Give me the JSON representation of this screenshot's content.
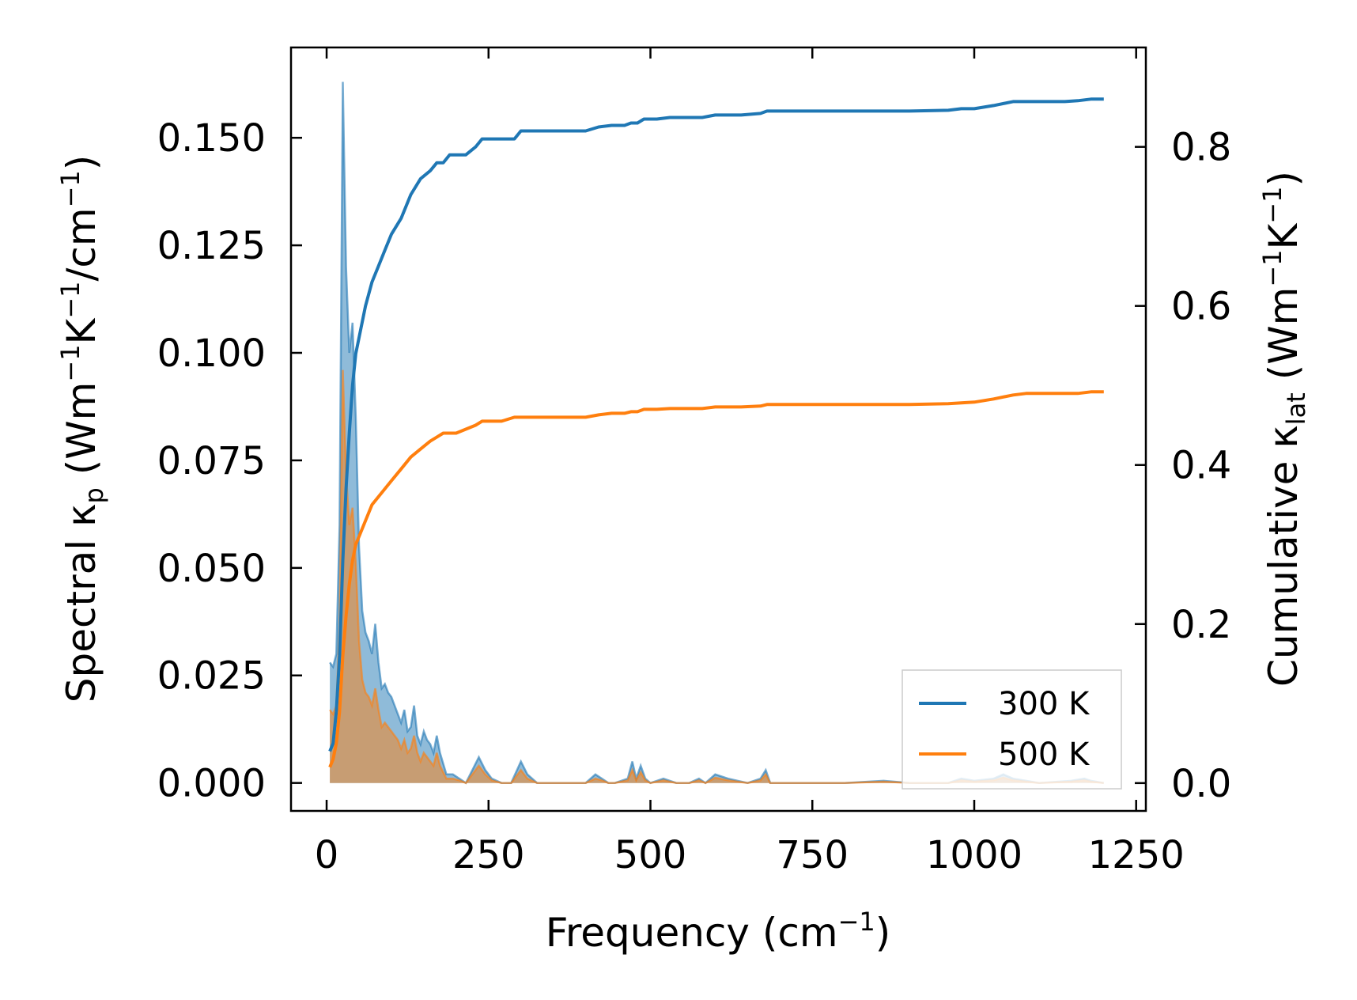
{
  "chart_data": {
    "type": "line",
    "title": "",
    "xlabel": {
      "main": "Frequency (cm",
      "sup": "−1",
      "end": ")"
    },
    "ylabel_left": {
      "main": "Spectral κ",
      "sub": "p",
      "unit_a": " (Wm",
      "sup1": "−1",
      "unit_b": "K",
      "sup2": "−1",
      "unit_c": "/cm",
      "sup3": "−1",
      "end": ")"
    },
    "ylabel_right": {
      "main": "Cumulative κ",
      "sub": "lat",
      "unit_a": " (Wm",
      "sup1": "−1",
      "unit_b": "K",
      "sup2": "−1",
      "end": ")"
    },
    "xlim": [
      -55,
      1265
    ],
    "ylim_left": [
      -0.0065,
      0.171
    ],
    "ylim_right": [
      -0.035,
      0.925
    ],
    "x_ticks": [
      0,
      250,
      500,
      750,
      1000,
      1250
    ],
    "y_ticks_left": [
      0.0,
      0.025,
      0.05,
      0.075,
      0.1,
      0.125,
      0.15
    ],
    "y_tick_labels_left": [
      "0.000",
      "0.025",
      "0.050",
      "0.075",
      "0.100",
      "0.125",
      "0.150"
    ],
    "y_ticks_right": [
      0.0,
      0.2,
      0.4,
      0.6,
      0.8
    ],
    "y_tick_labels_right": [
      "0.0",
      "0.2",
      "0.4",
      "0.6",
      "0.8"
    ],
    "legend": {
      "location": "lower-right",
      "entries": [
        "300 K",
        "500 K"
      ]
    },
    "series": [
      {
        "name": "300 K",
        "color": "#1f77b4",
        "spectral_x": [
          5,
          10,
          15,
          20,
          25,
          30,
          35,
          40,
          45,
          50,
          55,
          60,
          65,
          70,
          75,
          80,
          85,
          90,
          95,
          100,
          105,
          110,
          115,
          120,
          125,
          130,
          135,
          140,
          145,
          150,
          155,
          160,
          165,
          170,
          175,
          185,
          195,
          205,
          215,
          225,
          235,
          245,
          255,
          270,
          285,
          300,
          310,
          325,
          400,
          415,
          425,
          435,
          445,
          465,
          472,
          478,
          485,
          492,
          500,
          520,
          540,
          560,
          575,
          585,
          600,
          620,
          650,
          670,
          678,
          685,
          700,
          800,
          860,
          900,
          960,
          980,
          1000,
          1030,
          1045,
          1060,
          1080,
          1100,
          1150,
          1170,
          1180,
          1200
        ],
        "spectral_y": [
          0.028,
          0.027,
          0.03,
          0.06,
          0.163,
          0.12,
          0.1,
          0.107,
          0.085,
          0.055,
          0.04,
          0.035,
          0.033,
          0.03,
          0.037,
          0.028,
          0.022,
          0.023,
          0.021,
          0.02,
          0.018,
          0.016,
          0.014,
          0.017,
          0.012,
          0.013,
          0.018,
          0.011,
          0.009,
          0.012,
          0.01,
          0.009,
          0.007,
          0.011,
          0.007,
          0.002,
          0.002,
          0.001,
          0.0,
          0.003,
          0.006,
          0.003,
          0.001,
          0.0,
          0.0,
          0.005,
          0.002,
          0.0,
          0.0,
          0.002,
          0.001,
          0.0,
          0.0,
          0.001,
          0.005,
          0.001,
          0.004,
          0.001,
          0.0,
          0.001,
          0.0,
          0.0,
          0.001,
          0.0,
          0.002,
          0.001,
          0.0,
          0.001,
          0.003,
          0.0,
          0.0,
          0.0,
          0.0005,
          0.0,
          0.0,
          0.001,
          0.0005,
          0.001,
          0.002,
          0.001,
          0.0005,
          0.0,
          0.0005,
          0.001,
          0.0005,
          0.0
        ],
        "cumulative_x": [
          5,
          10,
          15,
          20,
          25,
          30,
          35,
          40,
          45,
          50,
          60,
          70,
          80,
          90,
          100,
          115,
          130,
          145,
          160,
          170,
          180,
          190,
          200,
          215,
          230,
          240,
          250,
          270,
          290,
          300,
          320,
          360,
          400,
          420,
          440,
          460,
          470,
          480,
          490,
          510,
          530,
          580,
          600,
          640,
          670,
          680,
          700,
          800,
          900,
          960,
          980,
          1000,
          1030,
          1060,
          1080,
          1100,
          1140,
          1160,
          1180,
          1200
        ],
        "cumulative_y": [
          0.04,
          0.05,
          0.09,
          0.16,
          0.28,
          0.37,
          0.44,
          0.5,
          0.54,
          0.56,
          0.6,
          0.63,
          0.65,
          0.67,
          0.69,
          0.71,
          0.74,
          0.76,
          0.77,
          0.78,
          0.78,
          0.79,
          0.79,
          0.79,
          0.8,
          0.81,
          0.81,
          0.81,
          0.81,
          0.82,
          0.82,
          0.82,
          0.82,
          0.825,
          0.827,
          0.827,
          0.83,
          0.83,
          0.835,
          0.835,
          0.837,
          0.837,
          0.84,
          0.84,
          0.842,
          0.845,
          0.845,
          0.845,
          0.845,
          0.846,
          0.848,
          0.848,
          0.852,
          0.857,
          0.857,
          0.857,
          0.857,
          0.858,
          0.86,
          0.86
        ]
      },
      {
        "name": "500 K",
        "color": "#ff7f0e",
        "spectral_x": [
          5,
          10,
          15,
          20,
          25,
          30,
          35,
          40,
          45,
          50,
          55,
          60,
          65,
          70,
          75,
          80,
          85,
          90,
          95,
          100,
          105,
          110,
          115,
          120,
          125,
          130,
          135,
          140,
          145,
          150,
          155,
          160,
          165,
          170,
          175,
          185,
          195,
          205,
          215,
          225,
          235,
          245,
          255,
          270,
          285,
          300,
          310,
          325,
          400,
          415,
          425,
          435,
          445,
          465,
          472,
          478,
          485,
          492,
          500,
          520,
          540,
          560,
          575,
          585,
          600,
          620,
          650,
          670,
          678,
          685,
          700,
          800,
          860,
          900,
          960,
          980,
          1000,
          1030,
          1045,
          1060,
          1080,
          1100,
          1150,
          1170,
          1180,
          1200
        ],
        "spectral_y": [
          0.017,
          0.016,
          0.018,
          0.036,
          0.096,
          0.072,
          0.06,
          0.064,
          0.051,
          0.033,
          0.024,
          0.021,
          0.02,
          0.018,
          0.022,
          0.017,
          0.013,
          0.014,
          0.013,
          0.012,
          0.011,
          0.01,
          0.008,
          0.01,
          0.007,
          0.008,
          0.011,
          0.007,
          0.005,
          0.007,
          0.006,
          0.005,
          0.004,
          0.007,
          0.004,
          0.001,
          0.001,
          0.0006,
          0.0,
          0.002,
          0.004,
          0.002,
          0.0006,
          0.0,
          0.0,
          0.003,
          0.001,
          0.0,
          0.0,
          0.001,
          0.0006,
          0.0,
          0.0,
          0.0006,
          0.003,
          0.0006,
          0.0025,
          0.0006,
          0.0,
          0.0006,
          0.0,
          0.0,
          0.0006,
          0.0,
          0.0012,
          0.0006,
          0.0,
          0.0006,
          0.002,
          0.0,
          0.0,
          0.0,
          0.0003,
          0.0,
          0.0,
          0.0006,
          0.0003,
          0.0006,
          0.0012,
          0.0006,
          0.0003,
          0.0,
          0.0003,
          0.0006,
          0.0003,
          0.0
        ],
        "cumulative_x": [
          5,
          10,
          15,
          20,
          25,
          30,
          35,
          40,
          45,
          50,
          60,
          70,
          80,
          90,
          100,
          115,
          130,
          145,
          160,
          170,
          180,
          190,
          200,
          215,
          230,
          240,
          250,
          270,
          290,
          300,
          320,
          360,
          400,
          420,
          440,
          460,
          470,
          480,
          490,
          510,
          530,
          580,
          600,
          640,
          670,
          680,
          700,
          800,
          900,
          960,
          980,
          1000,
          1030,
          1060,
          1080,
          1100,
          1140,
          1160,
          1180,
          1200
        ],
        "cumulative_y": [
          0.02,
          0.03,
          0.05,
          0.09,
          0.16,
          0.21,
          0.25,
          0.28,
          0.3,
          0.31,
          0.33,
          0.35,
          0.36,
          0.37,
          0.38,
          0.395,
          0.41,
          0.42,
          0.43,
          0.435,
          0.44,
          0.44,
          0.44,
          0.445,
          0.45,
          0.455,
          0.455,
          0.455,
          0.46,
          0.46,
          0.46,
          0.46,
          0.46,
          0.463,
          0.465,
          0.465,
          0.467,
          0.467,
          0.47,
          0.47,
          0.471,
          0.471,
          0.473,
          0.473,
          0.474,
          0.476,
          0.476,
          0.476,
          0.476,
          0.477,
          0.478,
          0.479,
          0.483,
          0.488,
          0.49,
          0.49,
          0.49,
          0.49,
          0.492,
          0.492
        ]
      }
    ]
  }
}
